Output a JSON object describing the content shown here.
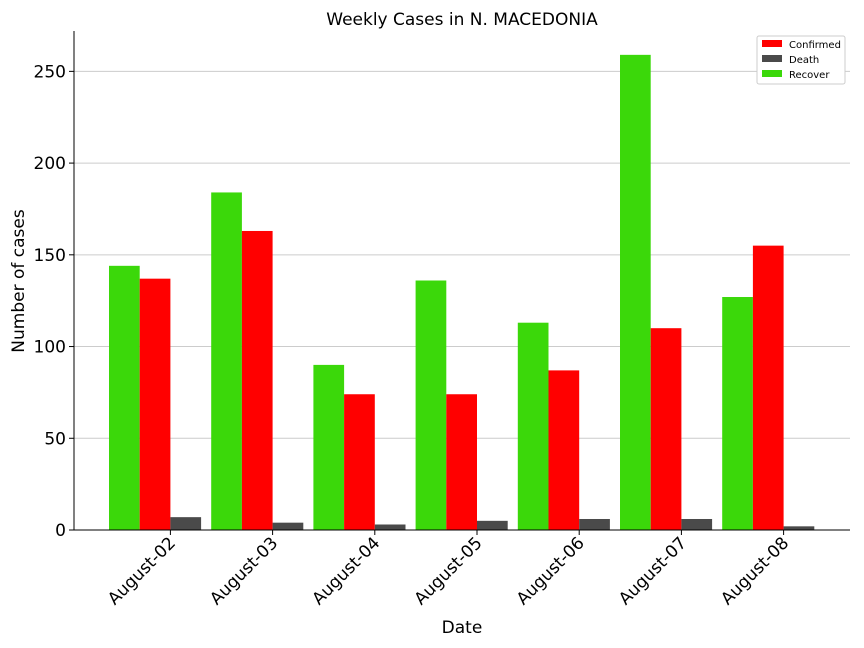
{
  "chart_data": {
    "type": "bar",
    "title": "Weekly Cases in N. MACEDONIA",
    "xlabel": "Date",
    "ylabel": "Number of cases",
    "categories": [
      "August-02",
      "August-03",
      "August-04",
      "August-05",
      "August-06",
      "August-07",
      "August-08"
    ],
    "series": [
      {
        "name": "Recover",
        "color": "#3bd80a",
        "values": [
          144,
          184,
          90,
          136,
          113,
          259,
          127
        ]
      },
      {
        "name": "Confirmed",
        "color": "#ff0000",
        "values": [
          137,
          163,
          74,
          74,
          87,
          110,
          155
        ]
      },
      {
        "name": "Death",
        "color": "#4a4a4a",
        "values": [
          7,
          4,
          3,
          5,
          6,
          6,
          2
        ]
      }
    ],
    "legend_order": [
      "Confirmed",
      "Death",
      "Recover"
    ],
    "ylim": [
      0,
      272
    ],
    "yticks": [
      0,
      50,
      100,
      150,
      200,
      250
    ],
    "grid": "horizontal",
    "legend_position": "top-right"
  }
}
